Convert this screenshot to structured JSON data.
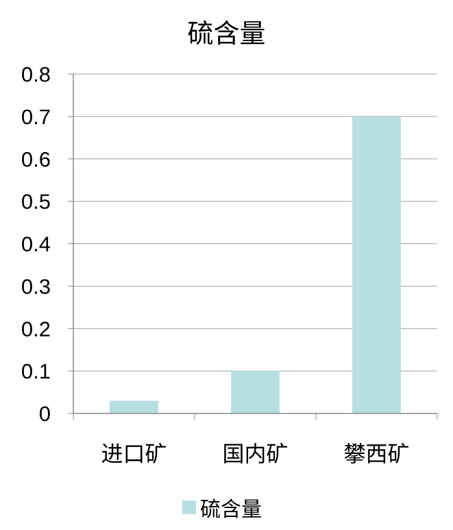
{
  "chart_data": {
    "type": "bar",
    "title": "硫含量",
    "categories": [
      "进口矿",
      "国内矿",
      "攀西矿"
    ],
    "series": [
      {
        "name": "硫含量",
        "values": [
          0.03,
          0.1,
          0.7
        ],
        "color": "#b7dfe2"
      }
    ],
    "xlabel": "",
    "ylabel": "",
    "ylim": [
      0,
      0.8
    ],
    "yticks": [
      "0",
      "0.1",
      "0.2",
      "0.3",
      "0.4",
      "0.5",
      "0.6",
      "0.7",
      "0.8"
    ],
    "grid": true,
    "gridColor": "#a0a0a0",
    "legend": "bottom"
  }
}
